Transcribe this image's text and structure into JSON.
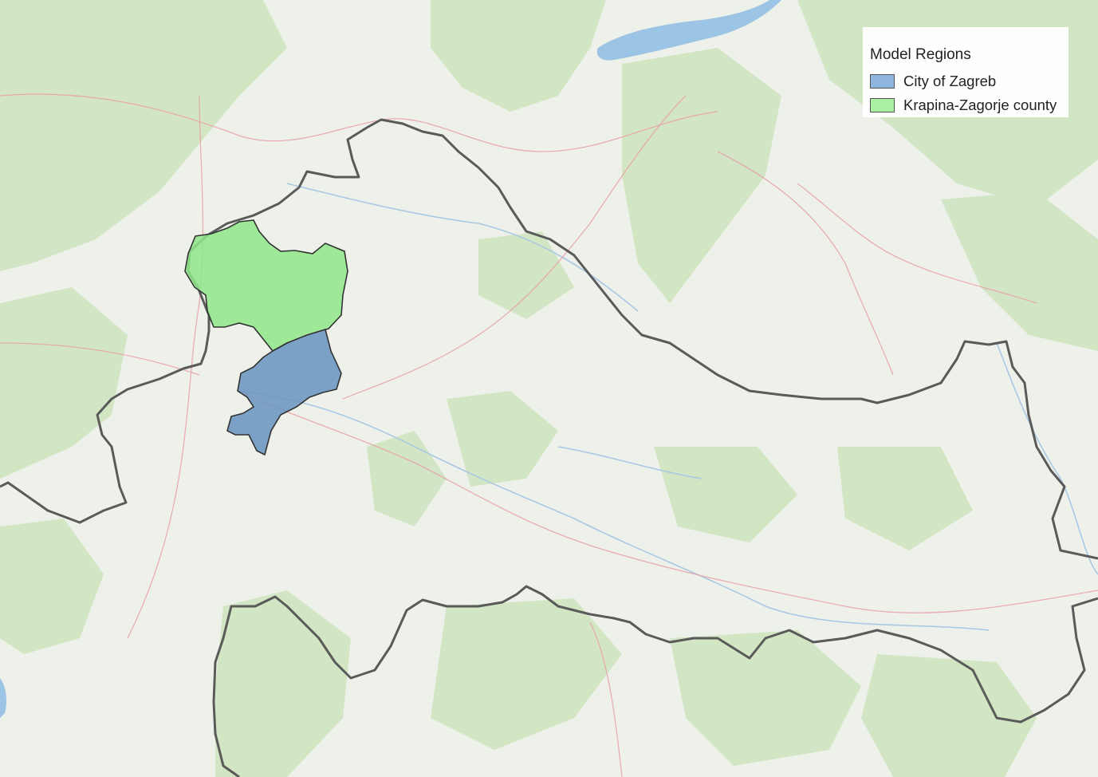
{
  "map": {
    "regions": [
      {
        "name": "City of Zagreb",
        "fill": "#6c95c2",
        "legend_fill": "#8eb6dc"
      },
      {
        "name": "Krapina-Zagorje county",
        "fill": "#8ee88a",
        "legend_fill": "#a9f0a0"
      }
    ],
    "border_color": "#5a5a5a",
    "lake_color": "#9cc4e4"
  },
  "legend": {
    "title": "Model Regions",
    "items": [
      {
        "label": "City of Zagreb",
        "color": "#8eb6dc"
      },
      {
        "label": "Krapina-Zagorje county",
        "color": "#a9f0a0"
      }
    ]
  }
}
